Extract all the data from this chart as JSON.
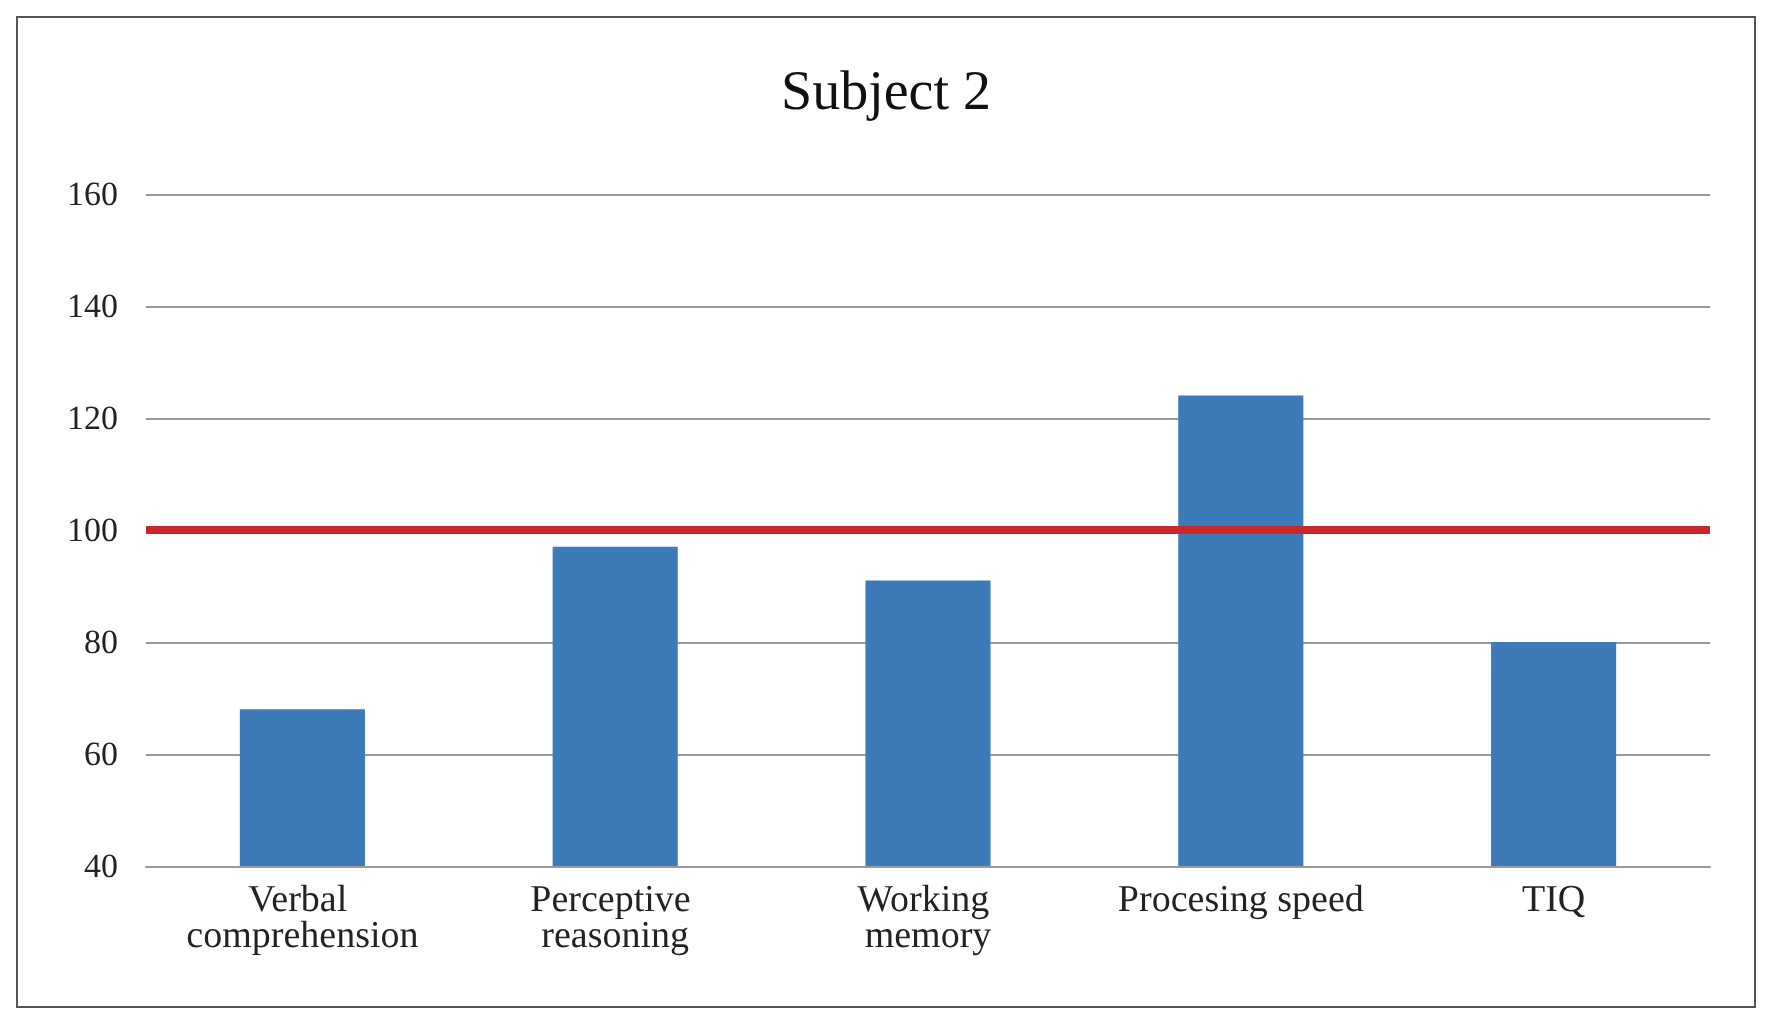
{
  "chart_data": {
    "type": "bar",
    "title": "Subject 2",
    "categories": [
      "Verbal comprehension",
      "Perceptive reasoning",
      "Working memory",
      "Procesing speed",
      "TIQ"
    ],
    "values": [
      68,
      97,
      91,
      124,
      80
    ],
    "color": "#3d7ab8",
    "ylim": [
      40,
      160
    ],
    "yticks": [
      40,
      60,
      80,
      100,
      120,
      140,
      160
    ],
    "grid": "y",
    "ref_lines": [
      {
        "axis": "y",
        "value": 100,
        "color": "#c8282a",
        "line_style": "solid"
      }
    ]
  }
}
